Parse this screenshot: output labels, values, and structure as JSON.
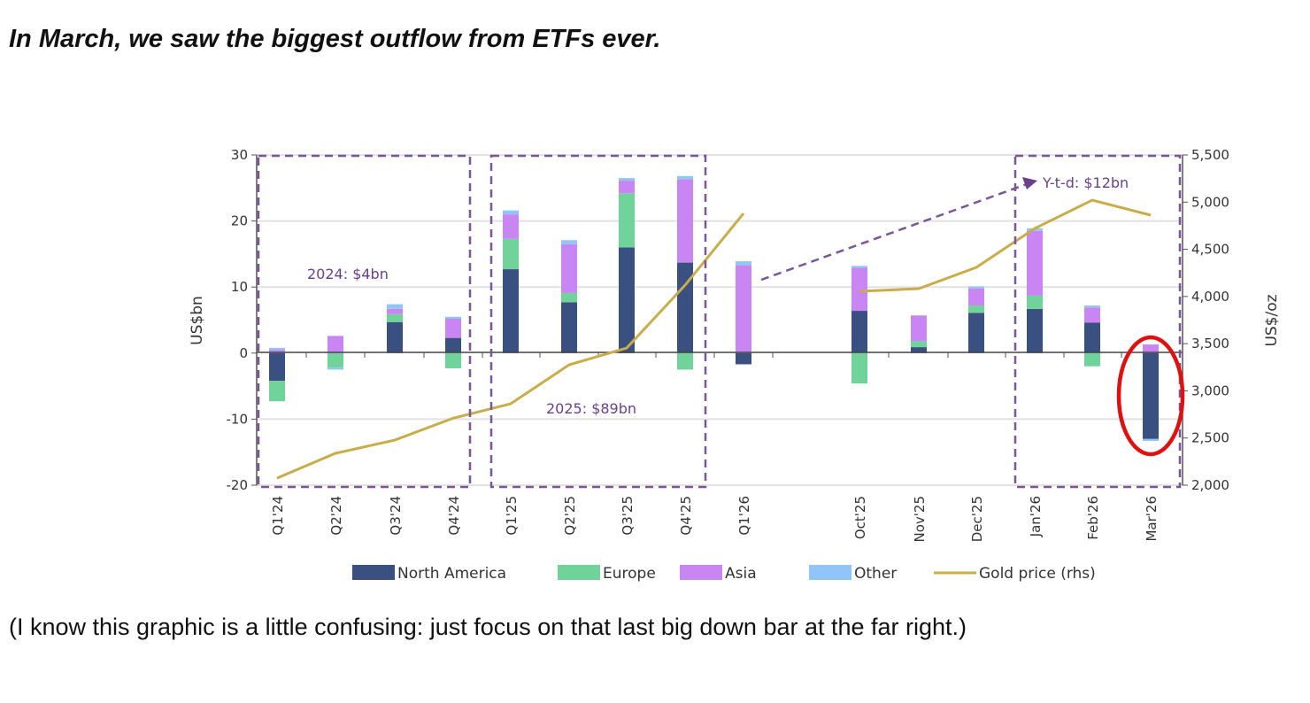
{
  "headline": "In March, we saw the biggest outflow from ETFs ever.",
  "caption": "(I know this graphic is a little confusing: just focus on that last big down bar at the far right.)",
  "chart_data": {
    "type": "bar",
    "stacked": true,
    "categories": [
      "Q1'24",
      "Q2'24",
      "Q3'24",
      "Q4'24",
      "Q1'25",
      "Q2'25",
      "Q3'25",
      "Q4'25",
      "Q1'26",
      "Oct'25",
      "Nov'25",
      "Dec'25",
      "Jan'26",
      "Feb'26",
      "Mar'26"
    ],
    "ylabel": "US$bn",
    "ylim": [
      -20,
      30
    ],
    "yticks": [
      "30",
      "20",
      "10",
      "0",
      "-10",
      "-20"
    ],
    "y2label": "US$/oz",
    "y2lim": [
      2000,
      5500
    ],
    "y2ticks": [
      "5,500",
      "5,000",
      "4,500",
      "4,000",
      "3,500",
      "3,000",
      "2,500",
      "2,000"
    ],
    "grid": true,
    "legend_position": "bottom",
    "series": [
      {
        "name": "North America",
        "color": "#3a5080",
        "values": [
          -4.2,
          0,
          4.7,
          2.3,
          12.7,
          7.7,
          16.0,
          13.7,
          -1.7,
          6.4,
          0.9,
          6.1,
          6.7,
          4.6,
          -13.0
        ]
      },
      {
        "name": "Europe",
        "color": "#6fd39a",
        "values": [
          -3.1,
          -2.2,
          1.2,
          -2.3,
          4.6,
          1.4,
          8.2,
          -2.5,
          0,
          -4.6,
          0.9,
          1.1,
          2.0,
          -2.0,
          0
        ]
      },
      {
        "name": "Asia",
        "color": "#c985f2",
        "values": [
          0.5,
          2.6,
          0.8,
          2.9,
          3.7,
          7.4,
          1.9,
          12.6,
          13.3,
          6.5,
          3.9,
          2.6,
          9.8,
          2.3,
          1.3
        ]
      },
      {
        "name": "Other",
        "color": "#8fc6f7",
        "values": [
          0.3,
          -0.3,
          0.7,
          0.3,
          0.6,
          0.6,
          0.4,
          0.5,
          0.6,
          0.3,
          0,
          0.3,
          0.4,
          0.3,
          -0.3
        ]
      }
    ],
    "line_series": {
      "name": "Gold price (rhs)",
      "color": "#c9ad4a",
      "axis": "right",
      "segments": [
        {
          "categories": [
            "Q1'24",
            "Q2'24",
            "Q3'24",
            "Q4'24",
            "Q1'25",
            "Q2'25",
            "Q3'25",
            "Q4'25",
            "Q1'26"
          ],
          "values": [
            2075,
            2338,
            2478,
            2710,
            2863,
            3276,
            3454,
            4120,
            4880
          ]
        },
        {
          "categories": [
            "Oct'25",
            "Nov'25",
            "Dec'25",
            "Jan'26",
            "Feb'26",
            "Mar'26"
          ],
          "values": [
            4055,
            4083,
            4308,
            4721,
            5021,
            4862
          ]
        }
      ]
    },
    "annotations": {
      "box_2024": "2024: $4bn",
      "box_2025": "2025: $89bn",
      "ytd": "Y-t-d: $12bn",
      "annotation_color": "#6b3f8e",
      "highlight_color": "#e01010",
      "highlight_category": "Mar'26"
    }
  }
}
